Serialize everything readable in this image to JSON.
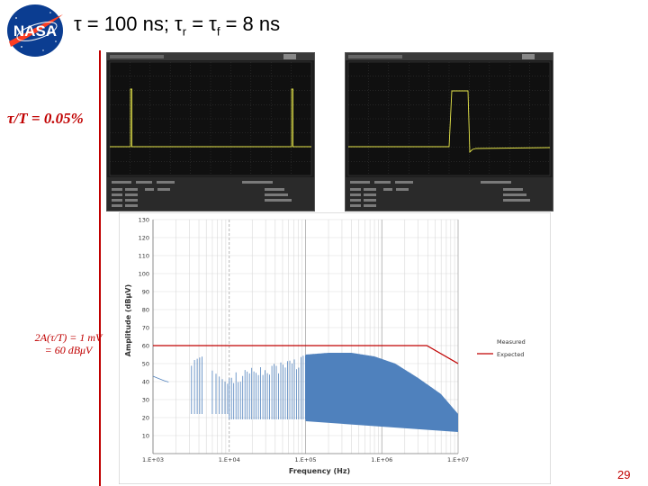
{
  "slide": {
    "title_tau": "τ = 100 ns; τ",
    "title_r": "r",
    "title_mid": " = τ",
    "title_f": "f",
    "title_end": "  = 8 ns",
    "duty_note": "τ/T = 0.05%",
    "amp_note_line1": "2A(τ/T) = 1 mV",
    "amp_note_line2": "= 60 dBμV",
    "page_number": "29"
  },
  "logo": {
    "text": "NASA"
  },
  "colors": {
    "accent_red": "#c00000",
    "measured": "#4f81bd",
    "expected": "#c00000",
    "trace": "#e8e84a"
  },
  "chart_data": [
    {
      "type": "line",
      "series": [
        {
          "values": []
        }
      ]
    },
    {
      "type": "line",
      "series": [
        {
          "values": []
        }
      ]
    },
    {
      "type": "line",
      "xlabel": "Frequency (Hz)",
      "ylabel": "Amplitude (dBμV)",
      "x_scale": "log",
      "xlim": [
        1000,
        10000000
      ],
      "ylim": [
        0,
        130
      ],
      "x_ticks": [
        "1.E+03",
        "1.E+04",
        "1.E+05",
        "1.E+06",
        "1.E+07"
      ],
      "y_ticks": [
        "10",
        "20",
        "30",
        "40",
        "50",
        "60",
        "70",
        "80",
        "90",
        "100",
        "110",
        "120",
        "130"
      ],
      "grid": true,
      "legend_position": "right",
      "series": [
        {
          "name": "Measured",
          "color": "#4f81bd",
          "x": [
            1000,
            1500,
            2500,
            3500,
            5000,
            10000,
            20000,
            40000,
            80000,
            100000,
            200000,
            400000,
            800000,
            1500000,
            3000000,
            6000000,
            10000000
          ],
          "y": [
            45,
            42,
            40,
            52,
            55,
            44,
            48,
            50,
            53,
            55,
            56,
            56,
            54,
            50,
            42,
            33,
            22
          ]
        },
        {
          "name": "Expected",
          "color": "#c00000",
          "x": [
            1000,
            3900000,
            10000000
          ],
          "y": [
            60,
            60,
            50
          ]
        }
      ]
    }
  ]
}
